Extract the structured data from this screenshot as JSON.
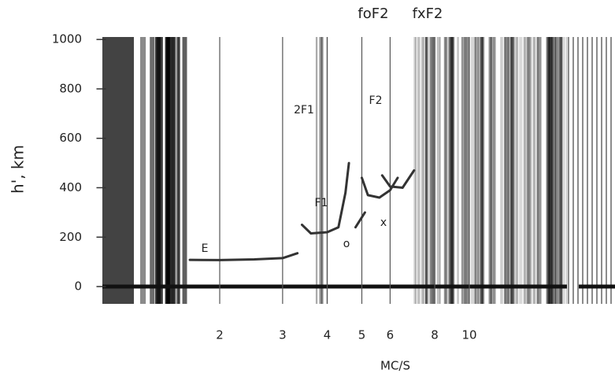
{
  "chart_data": {
    "type": "line",
    "xlabel": "MC/S",
    "ylabel": "h', km",
    "xscale": "log",
    "xlim": [
      1,
      25
    ],
    "ylim": [
      -70,
      1010
    ],
    "xticks": [
      2,
      3,
      4,
      5,
      6,
      8,
      10
    ],
    "yticks": [
      0,
      200,
      400,
      600,
      800,
      1000
    ],
    "grid": true,
    "series": [
      {
        "color": "#333333",
        "x": [
          1.65,
          2,
          2.5,
          3,
          3.3
        ],
        "values": [
          108,
          107,
          110,
          115,
          135
        ]
      },
      {
        "color": "#333333",
        "x": [
          3.4,
          3.6,
          4,
          4.3,
          4.5,
          4.6
        ],
        "values": [
          250,
          215,
          220,
          240,
          380,
          500
        ]
      },
      {
        "color": "#333333",
        "x": [
          4.8,
          5.1
        ],
        "values": [
          240,
          300
        ]
      },
      {
        "color": "#333333",
        "x": [
          5.0,
          5.2,
          5.6,
          6.0,
          6.3
        ],
        "values": [
          440,
          370,
          360,
          390,
          440
        ]
      },
      {
        "color": "#333333",
        "x": [
          5.7,
          6.0,
          6.5,
          7.0
        ],
        "values": [
          450,
          405,
          400,
          470
        ]
      }
    ],
    "annotations": [
      "E",
      "F1",
      "F2",
      "2F1",
      "o",
      "x",
      "foF2",
      "fxF2"
    ]
  }
}
